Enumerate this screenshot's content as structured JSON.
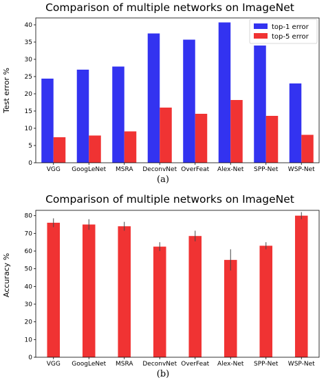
{
  "chart_data": [
    {
      "type": "bar",
      "title": "Comparison of multiple networks on ImageNet",
      "xlabel": "",
      "ylabel": "Test error %",
      "caption": "(a)",
      "categories": [
        "VGG",
        "GoogLeNet",
        "MSRA",
        "DeconvNet",
        "OverFeat",
        "Alex-Net",
        "SPP-Net",
        "WSP-Net"
      ],
      "ylim": [
        0,
        42
      ],
      "yticks": [
        0,
        5,
        10,
        15,
        20,
        25,
        30,
        35,
        40
      ],
      "legend_position": "top-right",
      "series": [
        {
          "name": "top-1 error",
          "color": "#3333f0",
          "values": [
            24.4,
            27.0,
            27.9,
            37.5,
            35.7,
            40.7,
            34.0,
            23.0
          ]
        },
        {
          "name": "top-5 error",
          "color": "#f03333",
          "values": [
            7.4,
            7.9,
            9.1,
            16.0,
            14.2,
            18.2,
            13.6,
            8.1
          ]
        }
      ]
    },
    {
      "type": "bar",
      "title": "Comparison of multiple networks on ImageNet",
      "xlabel": "",
      "ylabel": "Accuracy %",
      "caption": "(b)",
      "categories": [
        "VGG",
        "GoogLeNet",
        "MSRA",
        "DeconvNet",
        "OverFeat",
        "Alex-Net",
        "SPP-Net",
        "WSP-Net"
      ],
      "ylim": [
        0,
        83
      ],
      "yticks": [
        0,
        10,
        20,
        30,
        40,
        50,
        60,
        70,
        80
      ],
      "series": [
        {
          "color": "#f03333",
          "values": [
            76.0,
            75.0,
            74.0,
            62.5,
            68.5,
            55.0,
            63.0,
            80.0
          ],
          "errors": [
            2.5,
            3.0,
            2.5,
            2.5,
            3.0,
            6.0,
            2.0,
            2.0
          ]
        }
      ]
    }
  ]
}
